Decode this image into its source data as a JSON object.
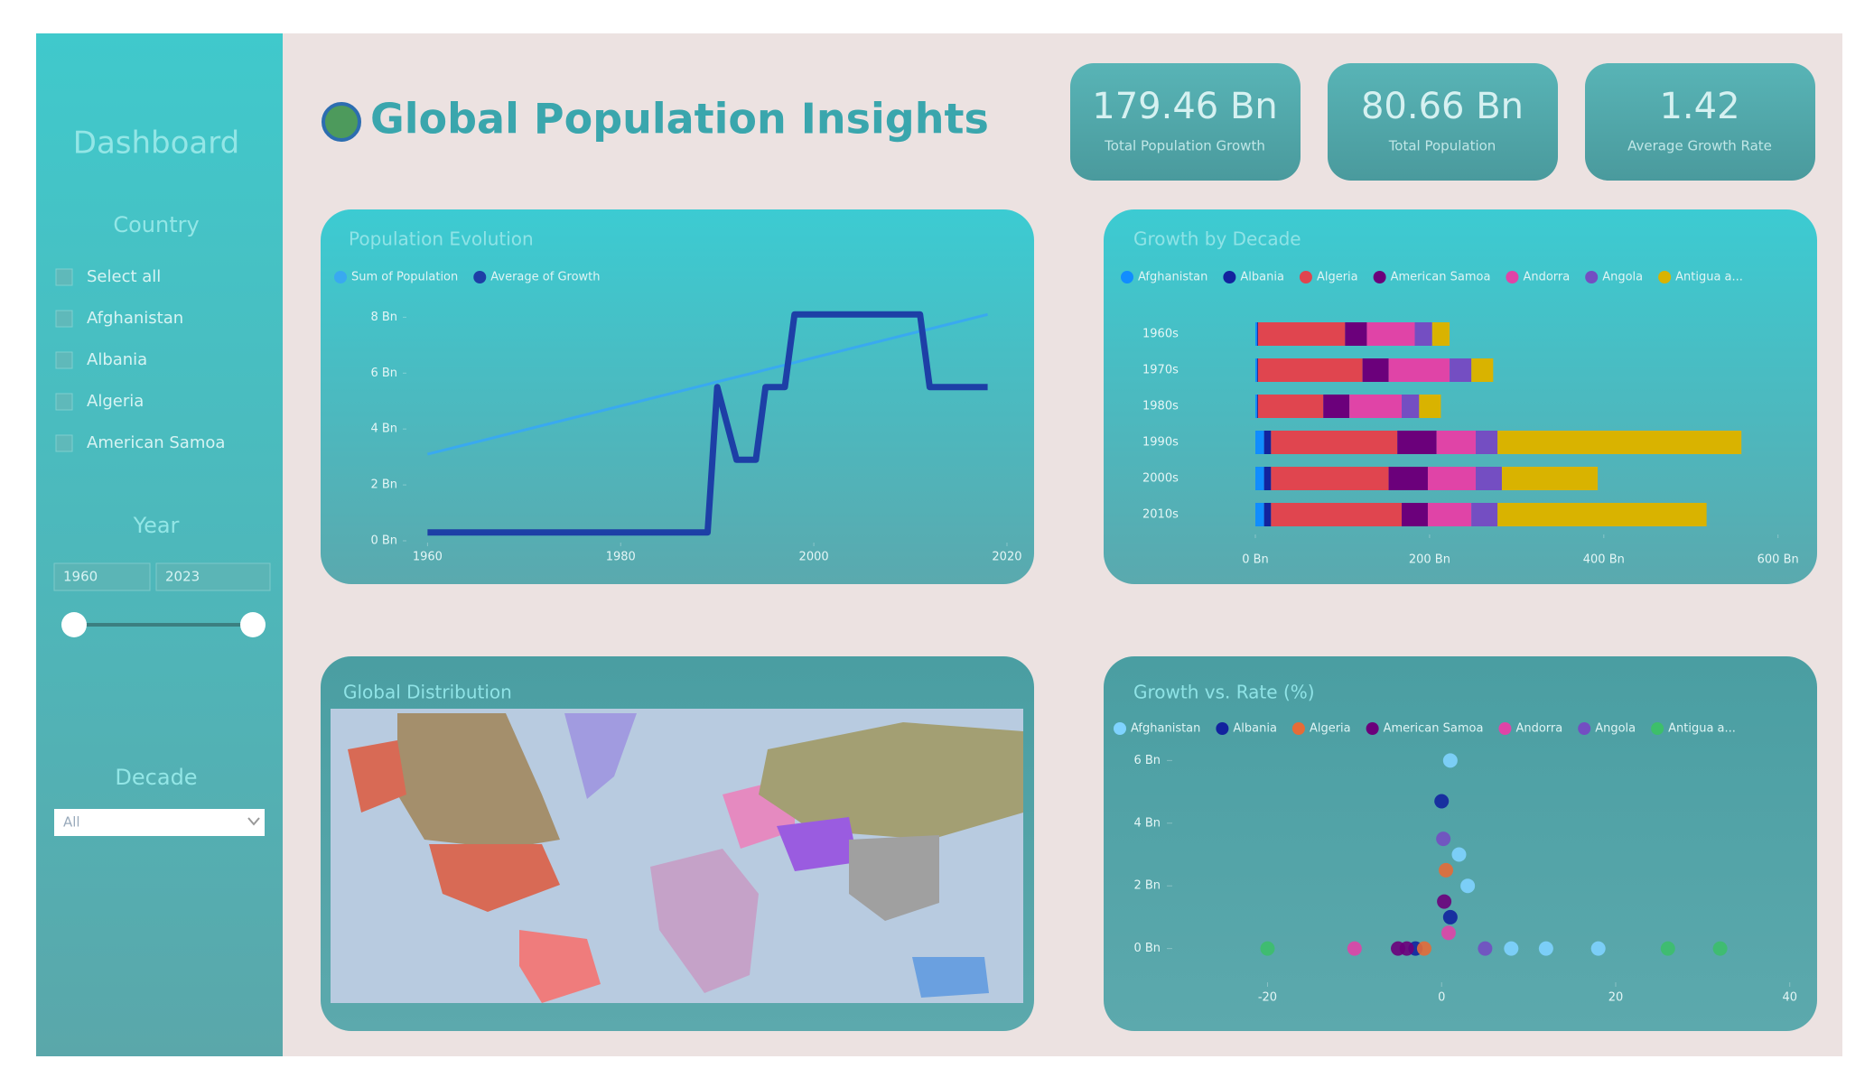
{
  "sidebar": {
    "title": "Dashboard",
    "country_label": "Country",
    "countries": [
      "Select all",
      "Afghanistan",
      "Albania",
      "Algeria",
      "American Samoa"
    ],
    "year_label": "Year",
    "year_from": "1960",
    "year_to": "2023",
    "decade_label": "Decade",
    "decade_value": "All"
  },
  "header": {
    "title": "Global Population Insights"
  },
  "kpis": [
    {
      "value": "179.46 Bn",
      "label": "Total Population Growth"
    },
    {
      "value": "80.66 Bn",
      "label": "Total Population"
    },
    {
      "value": "1.42",
      "label": "Average Growth Rate"
    }
  ],
  "map": {
    "title": "Global Distribution"
  },
  "chart_data": [
    {
      "type": "line",
      "title": "Population Evolution",
      "x": [
        1960,
        1989,
        1990,
        1992,
        1994,
        1995,
        1997,
        1998,
        2011,
        2012,
        2018
      ],
      "series": [
        {
          "name": "Sum of Population",
          "color": "#39a9f0",
          "values": [
            3.1,
            5.6,
            5.69,
            5.86,
            6.03,
            6.12,
            6.29,
            6.38,
            7.5,
            7.58,
            8.1
          ]
        },
        {
          "name": "Average of Growth",
          "color": "#1d3fa6",
          "values": [
            0.3,
            0.3,
            5.5,
            2.9,
            2.9,
            5.5,
            5.5,
            8.1,
            8.1,
            5.5,
            5.5
          ]
        }
      ],
      "xlim": [
        1958,
        2021.5
      ],
      "xticks": [
        1960,
        1980,
        2000,
        2020
      ],
      "ylim": [
        0,
        8.4
      ],
      "yticks": [
        {
          "value": 0,
          "label": "0 Bn"
        },
        {
          "value": 2,
          "label": "2 Bn"
        },
        {
          "value": 4,
          "label": "4 Bn"
        },
        {
          "value": 6,
          "label": "6 Bn"
        },
        {
          "value": 8,
          "label": "8 Bn"
        }
      ]
    },
    {
      "type": "hbar_stacked",
      "title": "Growth by Decade",
      "categories": [
        "1960s",
        "1970s",
        "1980s",
        "1990s",
        "2000s",
        "2010s"
      ],
      "series": [
        {
          "name": "Afghanistan",
          "color": "#118dff",
          "values": [
            2,
            2,
            2,
            10,
            10,
            10
          ]
        },
        {
          "name": "Albania",
          "color": "#12239e",
          "values": [
            1,
            1,
            1,
            8,
            8,
            8
          ]
        },
        {
          "name": "Algeria",
          "color": "#e0454f",
          "values": [
            100,
            120,
            75,
            145,
            135,
            150
          ]
        },
        {
          "name": "American Samoa",
          "color": "#6b007b",
          "values": [
            25,
            30,
            30,
            45,
            45,
            30
          ]
        },
        {
          "name": "Andorra",
          "color": "#e044a7",
          "values": [
            55,
            70,
            60,
            45,
            55,
            50
          ]
        },
        {
          "name": "Angola",
          "color": "#744ec2",
          "values": [
            20,
            25,
            20,
            25,
            30,
            30
          ]
        },
        {
          "name": "Antigua a...",
          "color": "#d9b300",
          "values": [
            20,
            25,
            25,
            280,
            110,
            240
          ]
        }
      ],
      "xlim": [
        0,
        620
      ],
      "xticks": [
        {
          "value": 0,
          "label": "0 Bn"
        },
        {
          "value": 200,
          "label": "200 Bn"
        },
        {
          "value": 400,
          "label": "400 Bn"
        },
        {
          "value": 600,
          "label": "600 Bn"
        }
      ]
    },
    {
      "type": "scatter",
      "title": "Growth vs. Rate (%)",
      "series": [
        {
          "name": "Afghanistan",
          "color": "#7fd3ff",
          "x": [
            1,
            2,
            3,
            8,
            12,
            18
          ],
          "values": [
            6,
            3,
            2,
            0,
            0,
            0
          ]
        },
        {
          "name": "Albania",
          "color": "#12239e",
          "x": [
            0,
            1,
            -3
          ],
          "values": [
            4.7,
            1,
            0
          ]
        },
        {
          "name": "Algeria",
          "color": "#e66c37",
          "x": [
            -2,
            0.5
          ],
          "values": [
            0,
            2.5
          ]
        },
        {
          "name": "American Samoa",
          "color": "#6b007b",
          "x": [
            -5,
            -4,
            0.3
          ],
          "values": [
            0,
            0,
            1.5
          ]
        },
        {
          "name": "Andorra",
          "color": "#e044a7",
          "x": [
            -10,
            0.8
          ],
          "values": [
            0,
            0.5
          ]
        },
        {
          "name": "Angola",
          "color": "#744ec2",
          "x": [
            0.2,
            5
          ],
          "values": [
            3.5,
            0
          ]
        },
        {
          "name": "Antigua a...",
          "color": "#3dbf6a",
          "x": [
            -20,
            26,
            32
          ],
          "values": [
            0,
            0,
            0
          ]
        }
      ],
      "xlim": [
        -27,
        42
      ],
      "xticks": [
        -20,
        0,
        20,
        40
      ],
      "ylim": [
        -0.5,
        6.5
      ],
      "yticks": [
        {
          "value": 0,
          "label": "0 Bn"
        },
        {
          "value": 2,
          "label": "2 Bn"
        },
        {
          "value": 4,
          "label": "4 Bn"
        },
        {
          "value": 6,
          "label": "6 Bn"
        }
      ]
    }
  ]
}
